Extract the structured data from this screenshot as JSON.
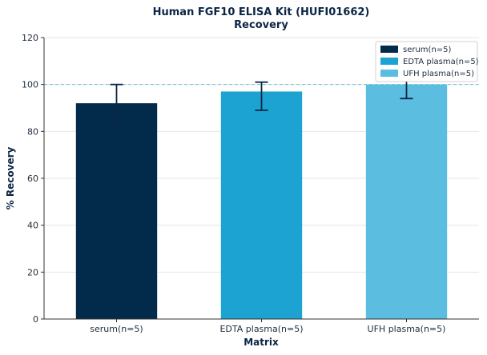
{
  "chart_data": {
    "type": "bar",
    "title": "Human FGF10 ELISA Kit (HUFI01662)",
    "subtitle": "Recovery",
    "xlabel": "Matrix",
    "ylabel": "% Recovery",
    "ylim": [
      0,
      120
    ],
    "yticks": [
      0,
      20,
      40,
      60,
      80,
      100,
      120
    ],
    "reference_line": 100,
    "grid": true,
    "legend_position": "top-right",
    "categories": [
      "serum(n=5)",
      "EDTA plasma(n=5)",
      "UFH plasma(n=5)"
    ],
    "values": [
      92,
      97,
      100
    ],
    "error_low": [
      84,
      89,
      94
    ],
    "error_high": [
      100,
      101,
      106
    ],
    "colors": [
      "#022a4a",
      "#1da3d1",
      "#5bbde0"
    ],
    "legend": [
      "serum(n=5)",
      "EDTA plasma(n=5)",
      "UFH plasma(n=5)"
    ]
  }
}
